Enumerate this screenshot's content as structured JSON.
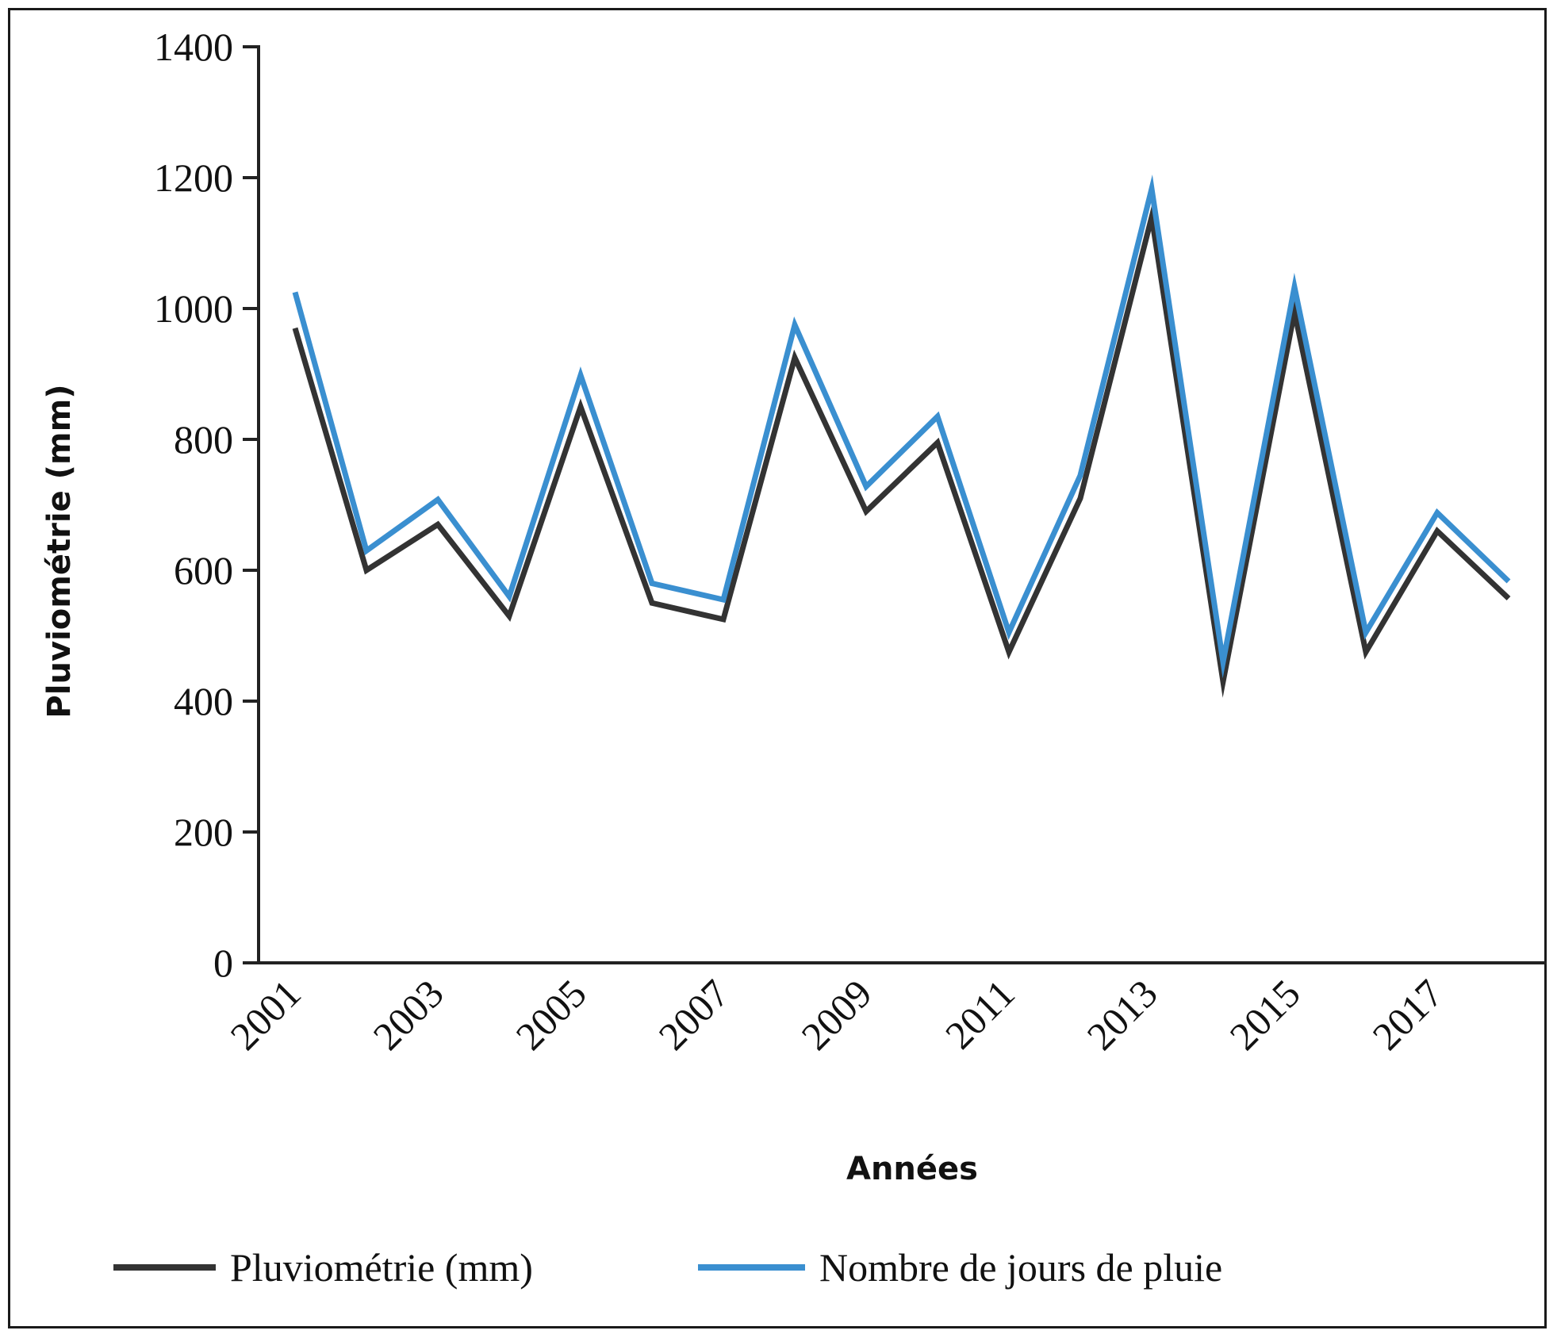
{
  "chart_data": {
    "type": "line",
    "xlabel": "Années",
    "ylabel": "Pluviométrie (mm)",
    "ylim": [
      0,
      1400
    ],
    "yticks": [
      "0",
      "200",
      "400",
      "600",
      "800",
      "1000",
      "1200",
      "1400"
    ],
    "x": [
      2001,
      2002,
      2003,
      2004,
      2005,
      2006,
      2007,
      2008,
      2009,
      2010,
      2011,
      2012,
      2013,
      2014,
      2015,
      2016,
      2017,
      2018
    ],
    "xtick_labels": [
      "2001",
      "2003",
      "2005",
      "2007",
      "2009",
      "2011",
      "2013",
      "2015",
      "2017"
    ],
    "series": [
      {
        "name": "Pluviométrie (mm)",
        "color": "#333333",
        "values": [
          970,
          600,
          670,
          530,
          850,
          550,
          525,
          925,
          690,
          795,
          475,
          710,
          1140,
          430,
          995,
          475,
          660,
          557
        ]
      },
      {
        "name": "Nombre de jours de pluie",
        "color": "#3a8fd0",
        "values": [
          1025,
          630,
          708,
          560,
          898,
          580,
          555,
          975,
          728,
          835,
          505,
          745,
          1183,
          460,
          1033,
          505,
          688,
          583
        ]
      }
    ],
    "grid": false,
    "legend_position": "bottom"
  }
}
